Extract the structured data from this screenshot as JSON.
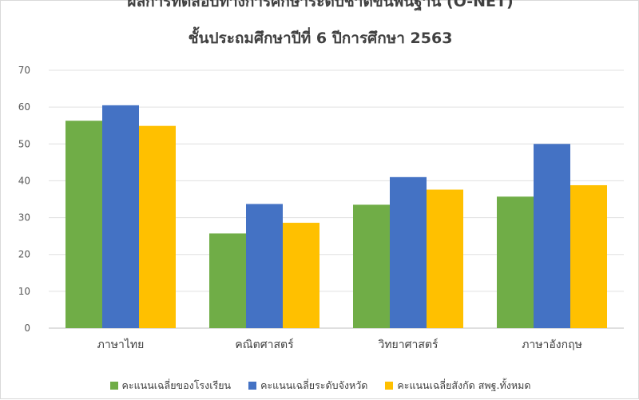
{
  "chart_data": {
    "type": "bar",
    "title_line1": "ผลการทดสอบทางการศึกษาระดับชาติขั้นพื้นฐาน (O-NET)",
    "title_line2": "ชั้นประถมศึกษาปีที่ 6 ปีการศึกษา 2563",
    "categories": [
      "ภาษาไทย",
      "คณิตศาสตร์",
      "วิทยาศาสตร์",
      "ภาษาอังกฤษ"
    ],
    "series": [
      {
        "name": "คะแนนเฉลี่ยของโรงเรียน",
        "color": "#70ad47",
        "values": [
          56.3,
          25.7,
          33.5,
          35.7
        ]
      },
      {
        "name": "คะแนนเฉลี่ยระดับจังหวัด",
        "color": "#4472c4",
        "values": [
          60.5,
          33.7,
          41.0,
          50.0
        ]
      },
      {
        "name": "คะแนนเฉลี่ยสังกัด สพฐ.ทั้งหมด",
        "color": "#ffc000",
        "values": [
          54.9,
          28.6,
          37.6,
          38.8
        ]
      }
    ],
    "yticks": [
      "0",
      "10",
      "20",
      "30",
      "40",
      "50",
      "60",
      "70"
    ],
    "ylim": [
      0,
      70
    ],
    "grid": true,
    "legend_position": "bottom"
  }
}
